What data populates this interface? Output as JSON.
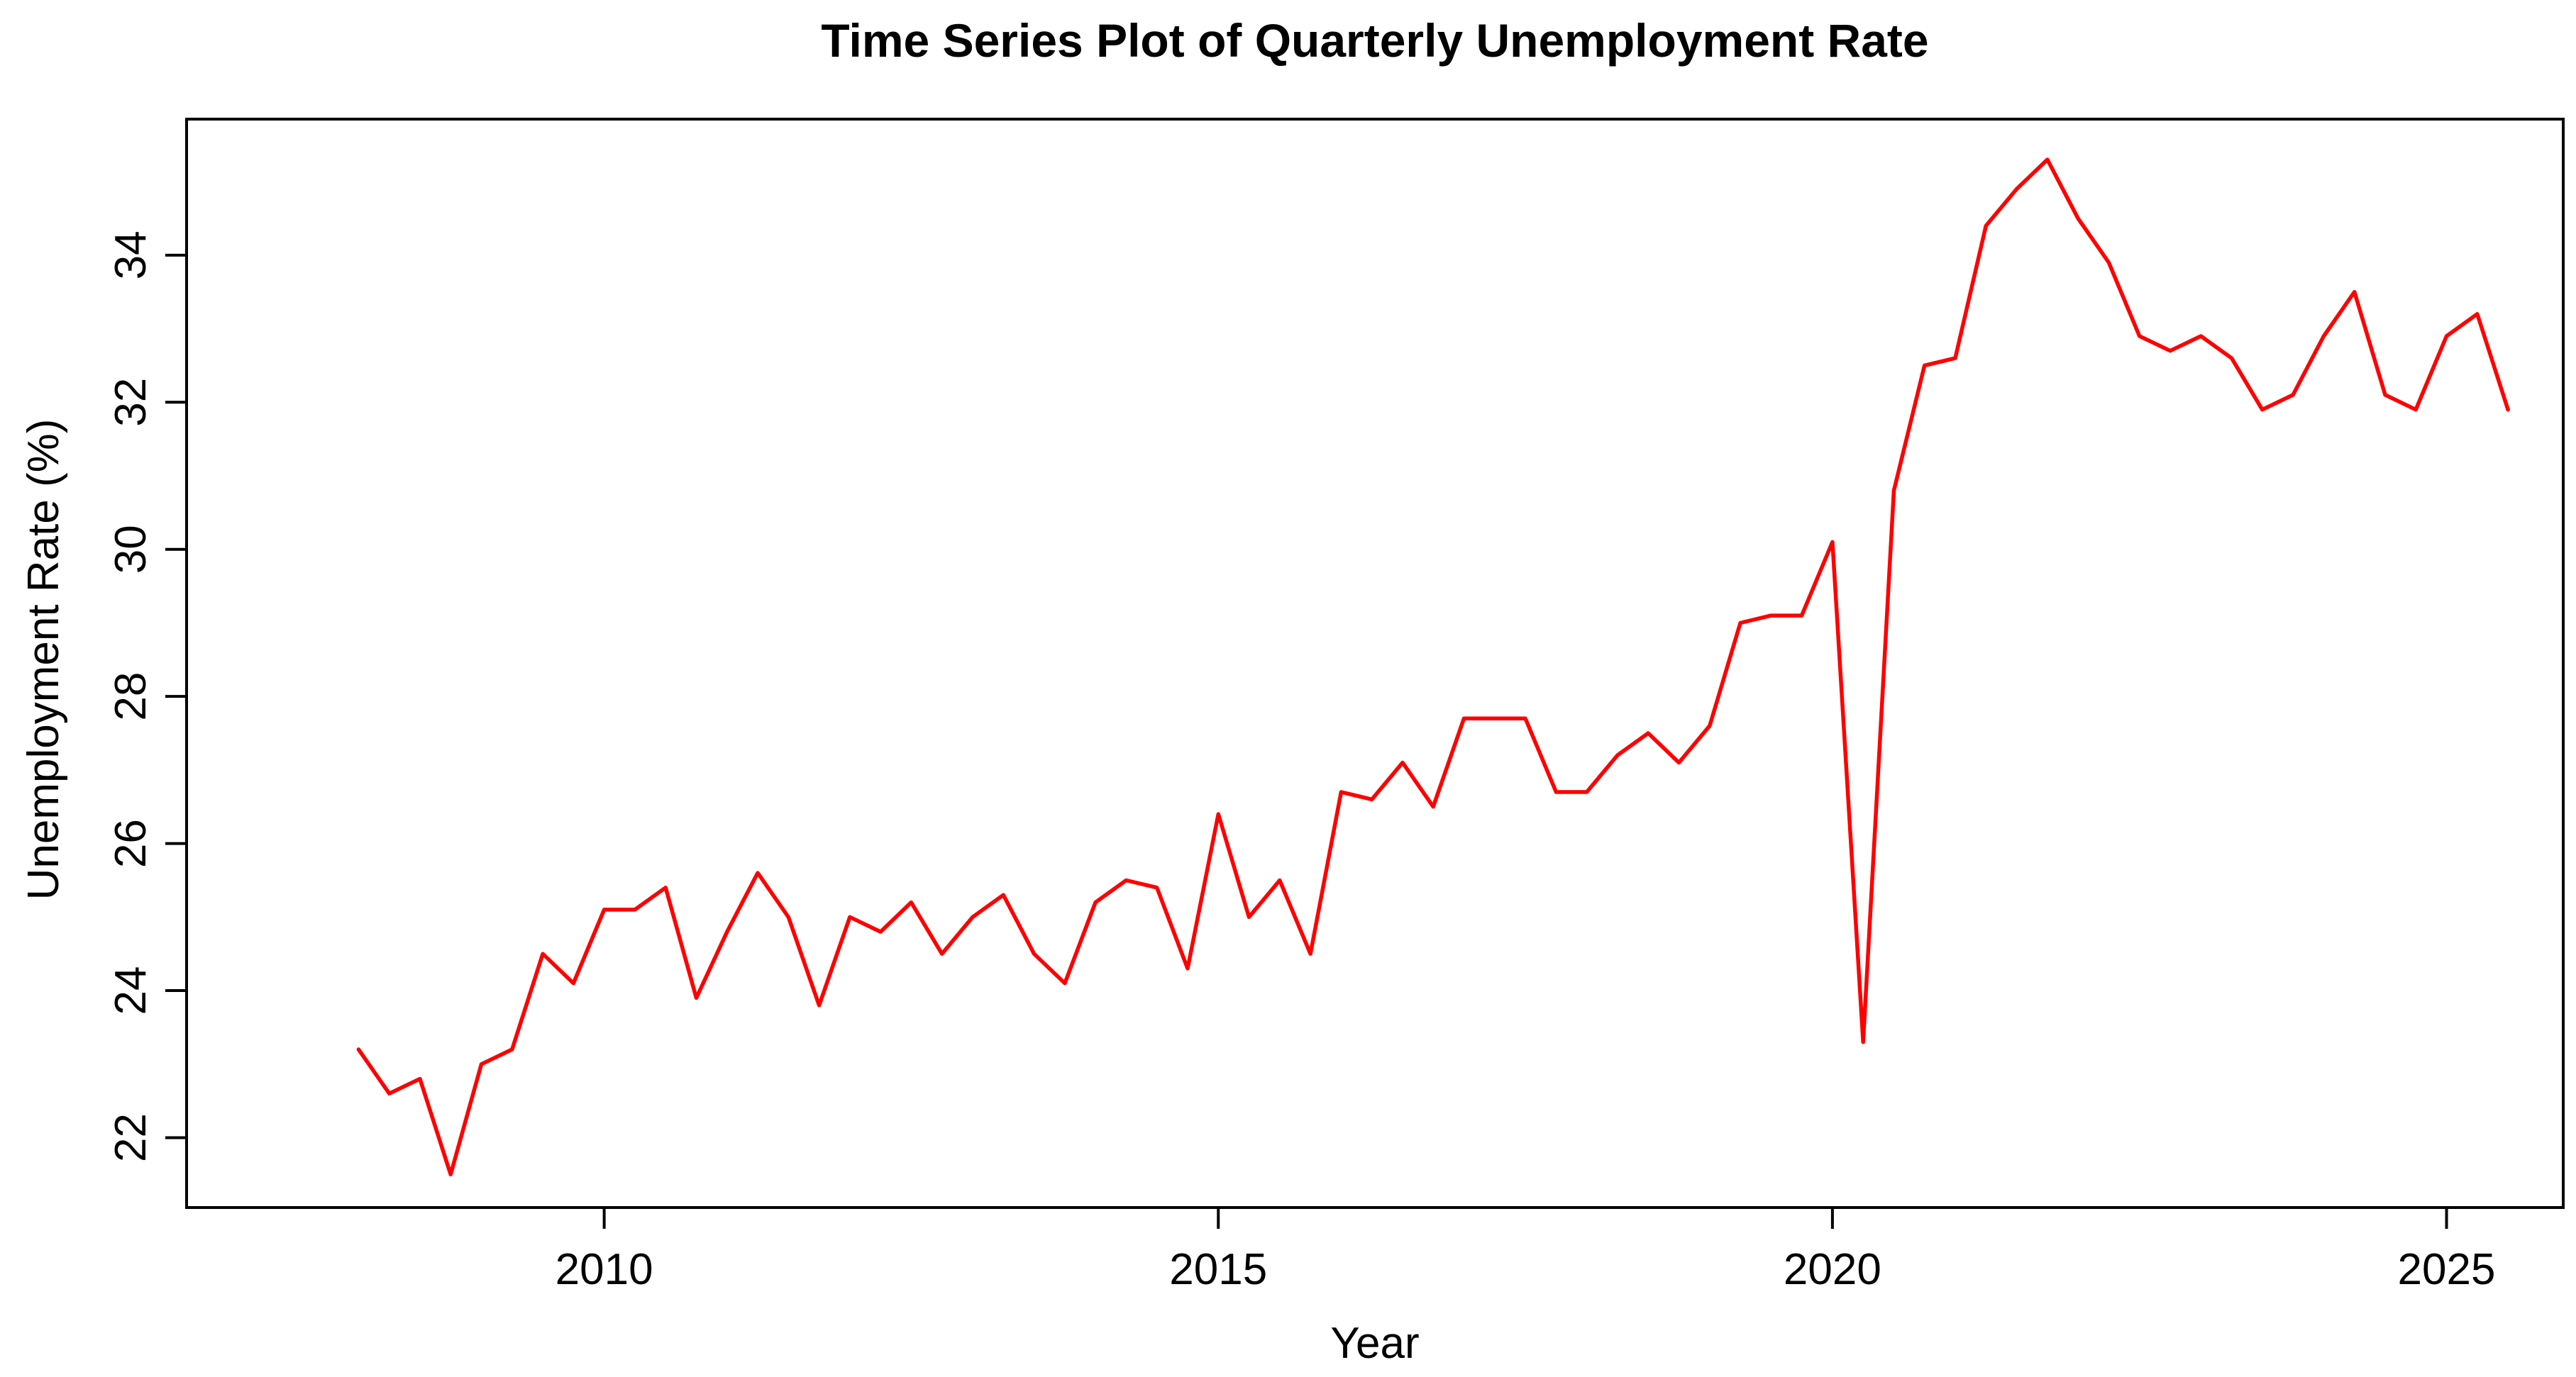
{
  "chart_data": {
    "type": "line",
    "title": "Time Series Plot of Quarterly Unemployment Rate",
    "xlabel": "Year",
    "ylabel": "Unemployment Rate (%)",
    "xlim": [
      2006.6,
      2025.95
    ],
    "ylim": [
      21.05,
      35.85
    ],
    "xticks": [
      2010,
      2015,
      2020,
      2025
    ],
    "yticks": [
      22,
      24,
      26,
      28,
      30,
      32,
      34
    ],
    "grid": false,
    "legend": "none",
    "line_color": "#ff0000",
    "series": [
      {
        "x": [
          2008.0,
          2008.25,
          2008.5,
          2008.75,
          2009.0,
          2009.25,
          2009.5,
          2009.75,
          2010.0,
          2010.25,
          2010.5,
          2010.75,
          2011.0,
          2011.25,
          2011.5,
          2011.75,
          2012.0,
          2012.25,
          2012.5,
          2012.75,
          2013.0,
          2013.25,
          2013.5,
          2013.75,
          2014.0,
          2014.25,
          2014.5,
          2014.75,
          2015.0,
          2015.25,
          2015.5,
          2015.75,
          2016.0,
          2016.25,
          2016.5,
          2016.75,
          2017.0,
          2017.25,
          2017.5,
          2017.75,
          2018.0,
          2018.25,
          2018.5,
          2018.75,
          2019.0,
          2019.25,
          2019.5,
          2019.75,
          2020.0,
          2020.25,
          2020.5,
          2020.75,
          2021.0,
          2021.25,
          2021.5,
          2021.75,
          2022.0,
          2022.25,
          2022.5,
          2022.75,
          2023.0,
          2023.25,
          2023.5,
          2023.75,
          2024.0,
          2024.25,
          2024.5,
          2024.75,
          2025.0,
          2025.25,
          2025.5
        ],
        "values": [
          23.2,
          22.6,
          22.8,
          21.5,
          23.0,
          23.2,
          24.5,
          24.1,
          25.1,
          25.1,
          25.4,
          23.9,
          24.8,
          25.6,
          25.0,
          23.8,
          25.0,
          24.8,
          25.2,
          24.5,
          25.0,
          25.3,
          24.5,
          24.1,
          25.2,
          25.5,
          25.4,
          24.3,
          26.4,
          25.0,
          25.5,
          24.5,
          26.7,
          26.6,
          27.1,
          26.5,
          27.7,
          27.7,
          27.7,
          26.7,
          26.7,
          27.2,
          27.5,
          27.1,
          27.6,
          29.0,
          29.1,
          29.1,
          30.1,
          23.3,
          30.8,
          32.5,
          32.6,
          34.4,
          34.9,
          35.3,
          34.5,
          33.9,
          32.9,
          32.7,
          32.9,
          32.6,
          31.9,
          32.1,
          32.9,
          33.5,
          32.1,
          31.9,
          32.9,
          33.2,
          31.9
        ]
      }
    ]
  }
}
